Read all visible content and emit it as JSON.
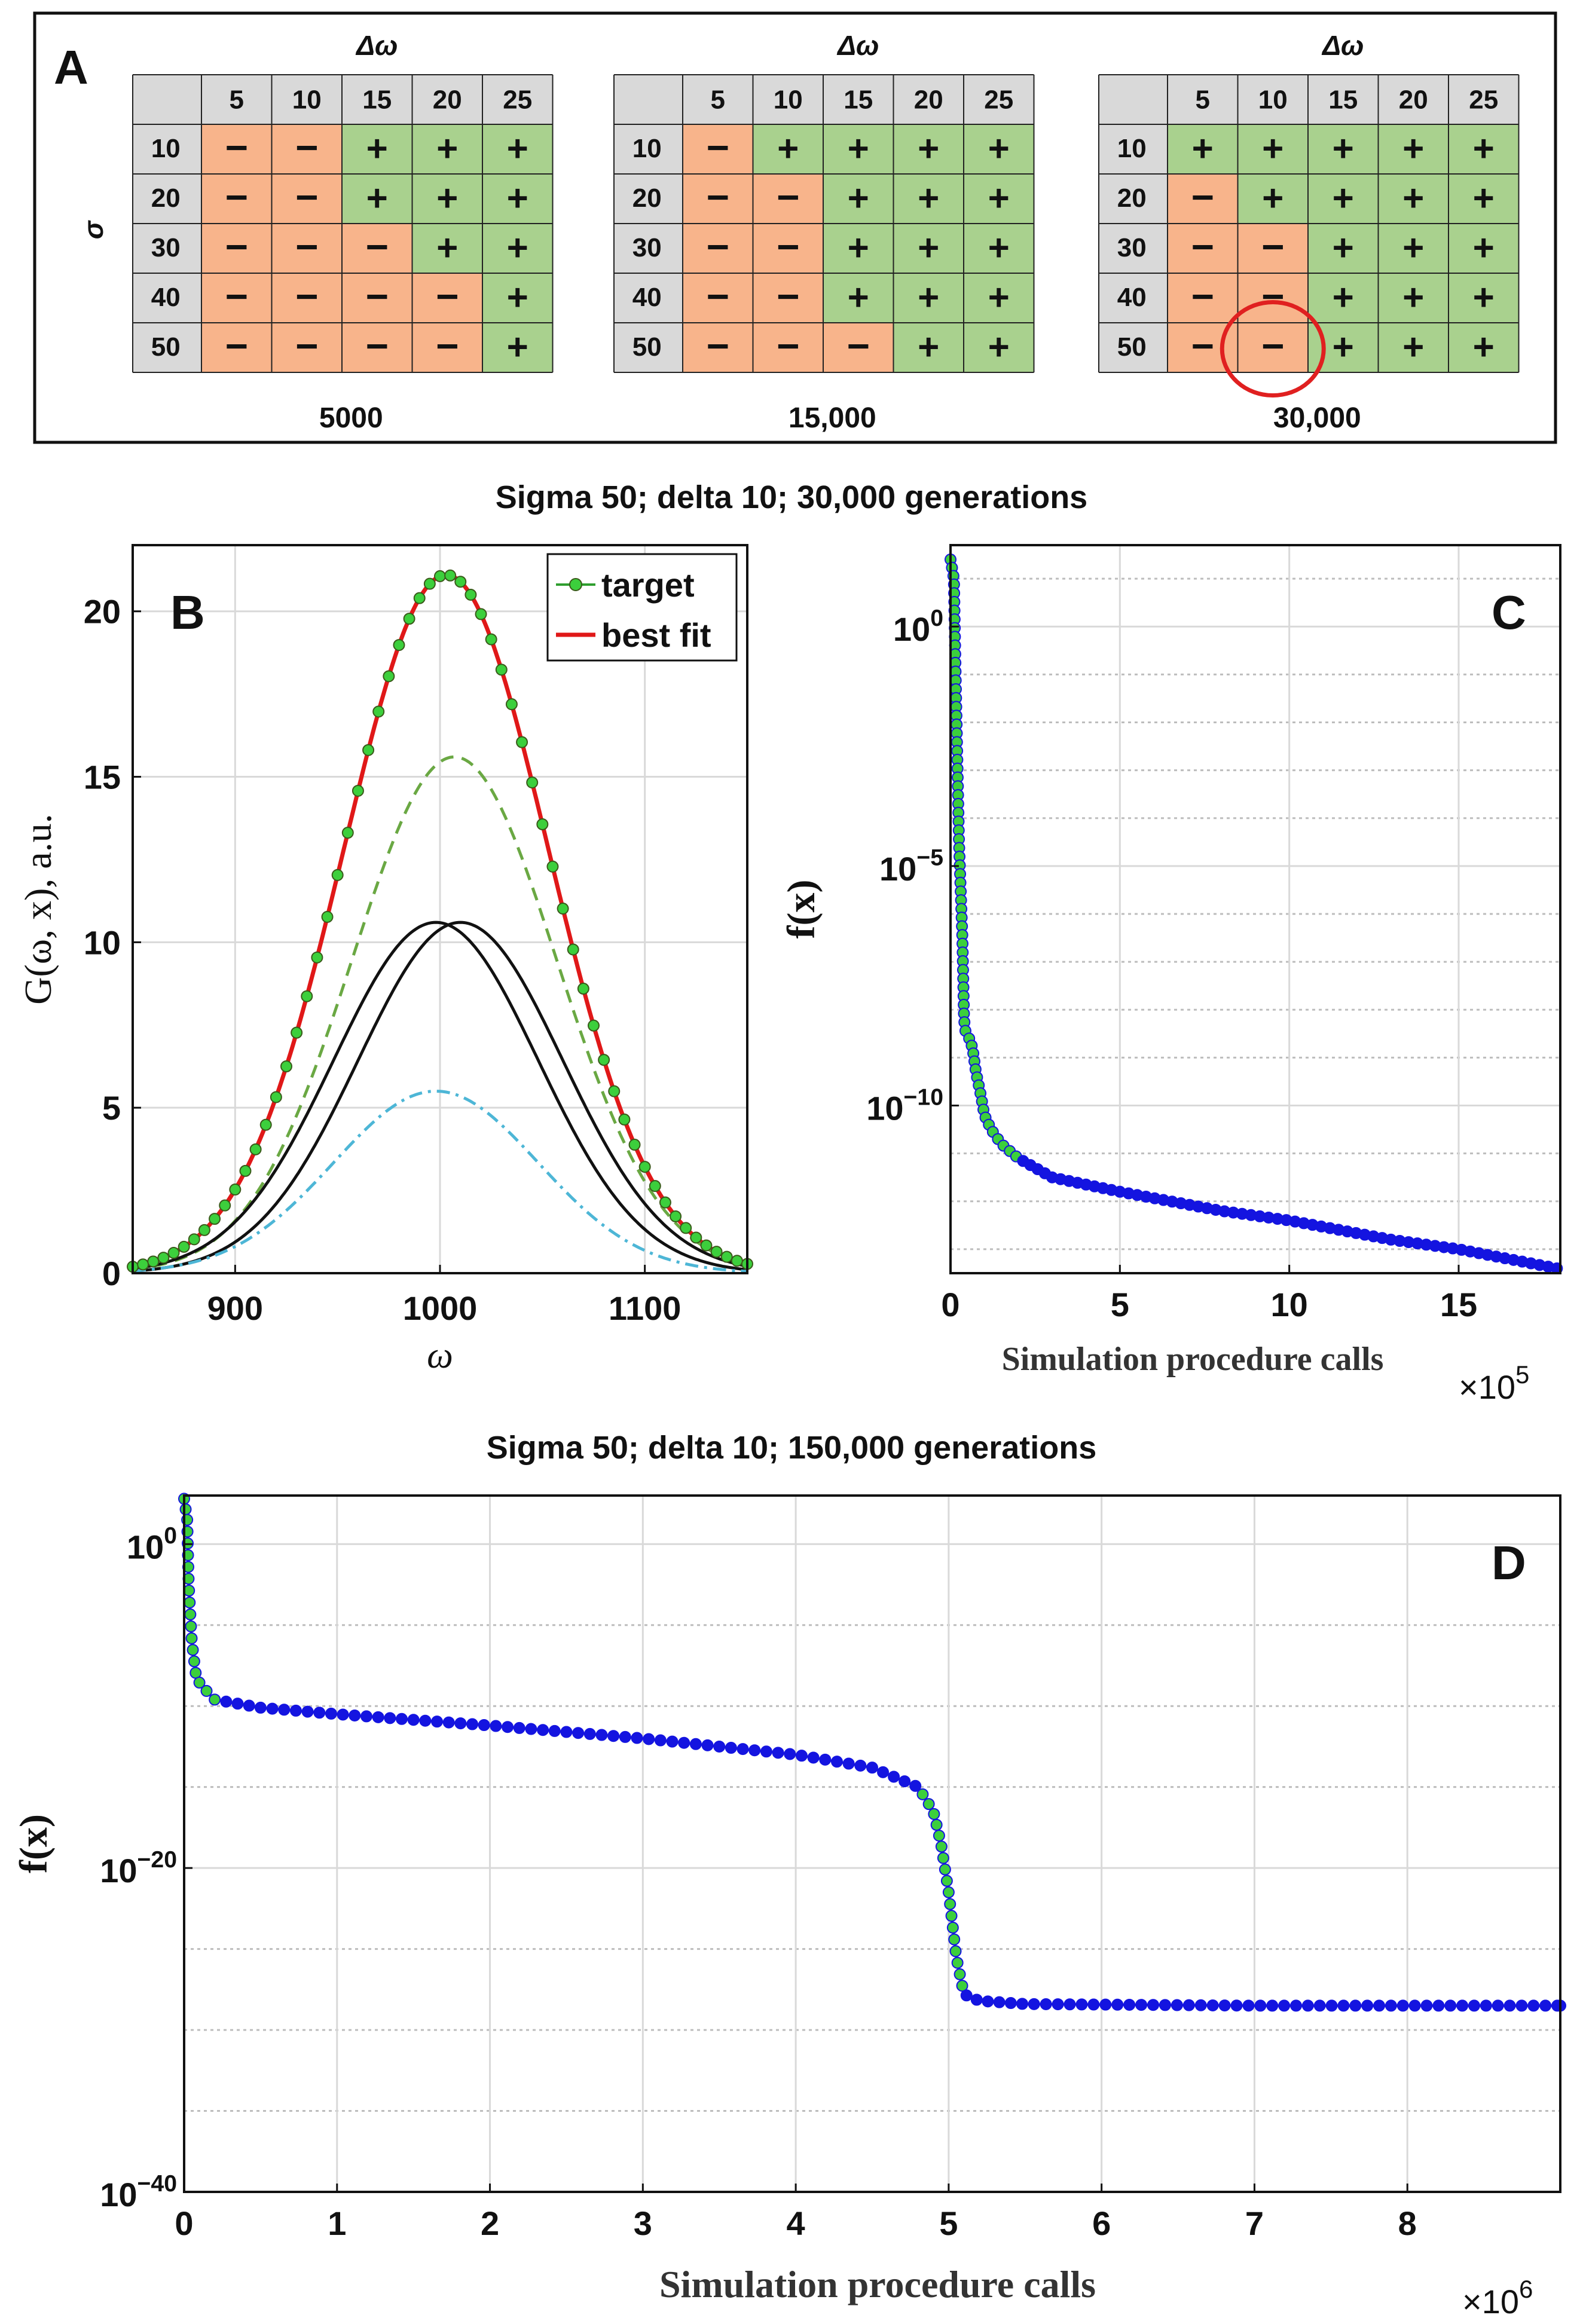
{
  "panel_a": {
    "letter": "A",
    "col_header": "Δω",
    "row_header": "σ",
    "columns": [
      "5",
      "10",
      "15",
      "20",
      "25"
    ],
    "rows": [
      "10",
      "20",
      "30",
      "40",
      "50"
    ],
    "plus": "+",
    "minus": "−",
    "colors": {
      "plus": "#a9d18e",
      "minus": "#f8b48b",
      "header": "#d9d9d9",
      "circle": "#e02020"
    },
    "tables": [
      {
        "caption": "5000",
        "cells": [
          [
            "-",
            "-",
            "+",
            "+",
            "+"
          ],
          [
            "-",
            "-",
            "+",
            "+",
            "+"
          ],
          [
            "-",
            "-",
            "-",
            "+",
            "+"
          ],
          [
            "-",
            "-",
            "-",
            "-",
            "+"
          ],
          [
            "-",
            "-",
            "-",
            "-",
            "+"
          ]
        ]
      },
      {
        "caption": "15,000",
        "cells": [
          [
            "-",
            "+",
            "+",
            "+",
            "+"
          ],
          [
            "-",
            "-",
            "+",
            "+",
            "+"
          ],
          [
            "-",
            "-",
            "+",
            "+",
            "+"
          ],
          [
            "-",
            "-",
            "+",
            "+",
            "+"
          ],
          [
            "-",
            "-",
            "-",
            "+",
            "+"
          ]
        ]
      },
      {
        "caption": "30,000",
        "cells": [
          [
            "+",
            "+",
            "+",
            "+",
            "+"
          ],
          [
            "-",
            "+",
            "+",
            "+",
            "+"
          ],
          [
            "-",
            "-",
            "+",
            "+",
            "+"
          ],
          [
            "-",
            "-",
            "+",
            "+",
            "+"
          ],
          [
            "-",
            "-",
            "+",
            "+",
            "+"
          ]
        ],
        "highlight": {
          "row": 4,
          "col": 1
        }
      }
    ]
  },
  "title_bc": "Sigma 50; delta 10; 30,000 generations",
  "title_d": "Sigma 50; delta 10; 150,000 generations",
  "chart_data": [
    {
      "id": "B",
      "type": "line",
      "letter": "B",
      "xlabel": "ω",
      "ylabel": "G(ω, x),  a.u.",
      "xlim": [
        850,
        1150
      ],
      "ylim": [
        0,
        22
      ],
      "xticks": [
        "900",
        "1000",
        "1100"
      ],
      "yticks": [
        "0",
        "5",
        "10",
        "15",
        "20"
      ],
      "grid": true,
      "legend": {
        "position": "top-right",
        "entries": [
          "target",
          "best fit"
        ]
      },
      "series": [
        {
          "name": "target",
          "style": "markers",
          "color": "#2e9e2e",
          "marker_color": "#3ccf3c",
          "gaussian": {
            "amplitude": 21.1,
            "center": 1003,
            "sigma": 50
          }
        },
        {
          "name": "best fit",
          "style": "solid",
          "color": "#e01818",
          "gaussian": {
            "amplitude": 21.1,
            "center": 1003,
            "sigma": 50
          }
        },
        {
          "style": "dashed",
          "color": "#6aa843",
          "gaussian": {
            "amplitude": 15.6,
            "center": 1007,
            "sigma": 50
          }
        },
        {
          "style": "solid",
          "color": "#111111",
          "gaussian": {
            "amplitude": 10.6,
            "center": 998,
            "sigma": 50
          }
        },
        {
          "style": "solid",
          "color": "#111111",
          "gaussian": {
            "amplitude": 10.6,
            "center": 1010,
            "sigma": 50
          }
        },
        {
          "style": "dashdot",
          "color": "#4db6d6",
          "gaussian": {
            "amplitude": 5.5,
            "center": 998,
            "sigma": 50
          }
        }
      ]
    },
    {
      "id": "C",
      "type": "line",
      "letter": "C",
      "xlabel": "Simulation procedure calls",
      "ylabel": "f(x)",
      "x_multiplier": "×10",
      "x_multiplier_exp": "5",
      "xlim": [
        0,
        18
      ],
      "y_log_exp_range": [
        -13.5,
        1.7
      ],
      "xticks": [
        0,
        5,
        10,
        15
      ],
      "yticks": [
        {
          "base": "10",
          "exp": "0",
          "v": 0
        },
        {
          "base": "10",
          "exp": "−5",
          "v": -5
        },
        {
          "base": "10",
          "exp": "−10",
          "v": -10
        }
      ],
      "y_minor_grid_exps": [
        1,
        -1,
        -2,
        -3,
        -4,
        -6,
        -7,
        -8,
        -9,
        -11,
        -12,
        -13
      ],
      "grid": true,
      "series": [
        {
          "color": "#1414e0",
          "marker_color": "#3ccf3c",
          "points": [
            [
              0,
              1.4
            ],
            [
              0.1,
              1.0
            ],
            [
              0.15,
              -1
            ],
            [
              0.25,
              -4.5
            ],
            [
              0.35,
              -6.5
            ],
            [
              0.4,
              -8.2
            ],
            [
              0.45,
              -8.5
            ],
            [
              0.55,
              -8.6
            ],
            [
              0.65,
              -8.8
            ],
            [
              0.75,
              -9.3
            ],
            [
              0.9,
              -9.8
            ],
            [
              1.0,
              -10.2
            ],
            [
              1.2,
              -10.5
            ],
            [
              1.5,
              -10.8
            ],
            [
              2,
              -11.1
            ],
            [
              3,
              -11.5
            ],
            [
              5,
              -11.8
            ],
            [
              8,
              -12.2
            ],
            [
              10,
              -12.4
            ],
            [
              13,
              -12.8
            ],
            [
              15,
              -13.0
            ],
            [
              17.9,
              -13.4
            ]
          ]
        }
      ]
    },
    {
      "id": "D",
      "type": "line",
      "letter": "D",
      "xlabel": "Simulation procedure calls",
      "ylabel": "f(x)",
      "x_multiplier": "×10",
      "x_multiplier_exp": "6",
      "xlim": [
        0,
        9
      ],
      "y_log_exp_range": [
        -40,
        3
      ],
      "xticks": [
        0,
        1,
        2,
        3,
        4,
        5,
        6,
        7,
        8
      ],
      "yticks": [
        {
          "base": "10",
          "exp": "0",
          "v": 0
        },
        {
          "base": "10",
          "exp": "−20",
          "v": -20
        },
        {
          "base": "10",
          "exp": "−40",
          "v": -40
        }
      ],
      "y_minor_grid_exps": [
        -5,
        -10,
        -15,
        -25,
        -30,
        -35
      ],
      "grid": true,
      "series": [
        {
          "color": "#1414e0",
          "marker_color": "#3ccf3c",
          "points": [
            [
              0,
              2.8
            ],
            [
              0.02,
              1.5
            ],
            [
              0.03,
              -2.5
            ],
            [
              0.05,
              -6
            ],
            [
              0.08,
              -8.3
            ],
            [
              0.12,
              -8.8
            ],
            [
              0.2,
              -9.6
            ],
            [
              0.5,
              -10.1
            ],
            [
              1,
              -10.5
            ],
            [
              2,
              -11.2
            ],
            [
              3,
              -12.0
            ],
            [
              4,
              -13.0
            ],
            [
              4.5,
              -13.8
            ],
            [
              4.8,
              -15.0
            ],
            [
              4.9,
              -16.5
            ],
            [
              4.95,
              -18.5
            ],
            [
              5.0,
              -21.5
            ],
            [
              5.05,
              -25.5
            ],
            [
              5.1,
              -27.8
            ],
            [
              5.2,
              -28.2
            ],
            [
              5.5,
              -28.4
            ],
            [
              7,
              -28.5
            ],
            [
              9,
              -28.5
            ]
          ]
        }
      ]
    }
  ]
}
